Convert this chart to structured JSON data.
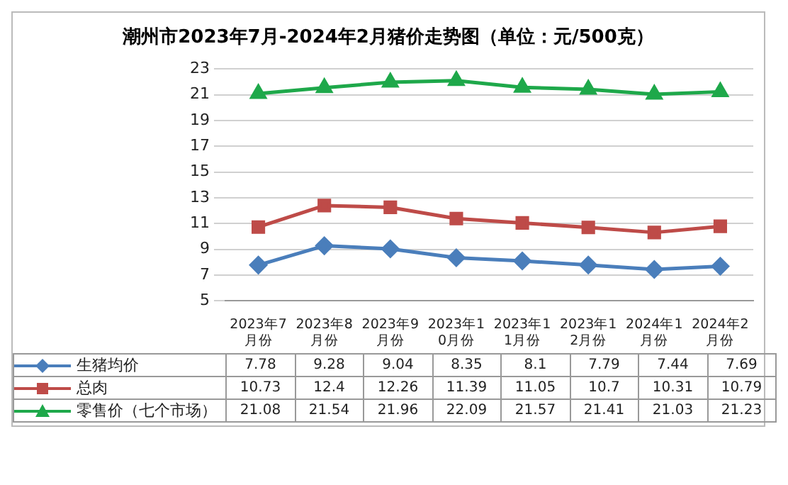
{
  "chart_data": {
    "type": "line",
    "title": "潮州市2023年7月-2024年2月猪价走势图（单位：元/500克）",
    "categories": [
      "2023年7月份",
      "2023年8月份",
      "2023年9月份",
      "2023年10月份",
      "2023年11月份",
      "2023年12月份",
      "2024年1月份",
      "2024年2月份"
    ],
    "series": [
      {
        "name": "生猪均价",
        "color": "#4a7ebb",
        "marker": "diamond",
        "values": [
          7.78,
          9.28,
          9.04,
          8.35,
          8.1,
          7.79,
          7.44,
          7.69
        ]
      },
      {
        "name": "总肉",
        "color": "#be4b48",
        "marker": "square",
        "values": [
          10.73,
          12.4,
          12.26,
          11.39,
          11.05,
          10.7,
          10.31,
          10.79
        ]
      },
      {
        "name": "零售价（七个市场）",
        "color": "#1ea84a",
        "marker": "triangle",
        "values": [
          21.08,
          21.54,
          21.96,
          22.09,
          21.57,
          21.41,
          21.03,
          21.23
        ]
      }
    ],
    "ylim": [
      5,
      23
    ],
    "yticks": [
      5,
      7,
      9,
      11,
      13,
      15,
      17,
      19,
      21,
      23
    ],
    "grid": "y",
    "legend": "bottom",
    "data_labels": true
  }
}
